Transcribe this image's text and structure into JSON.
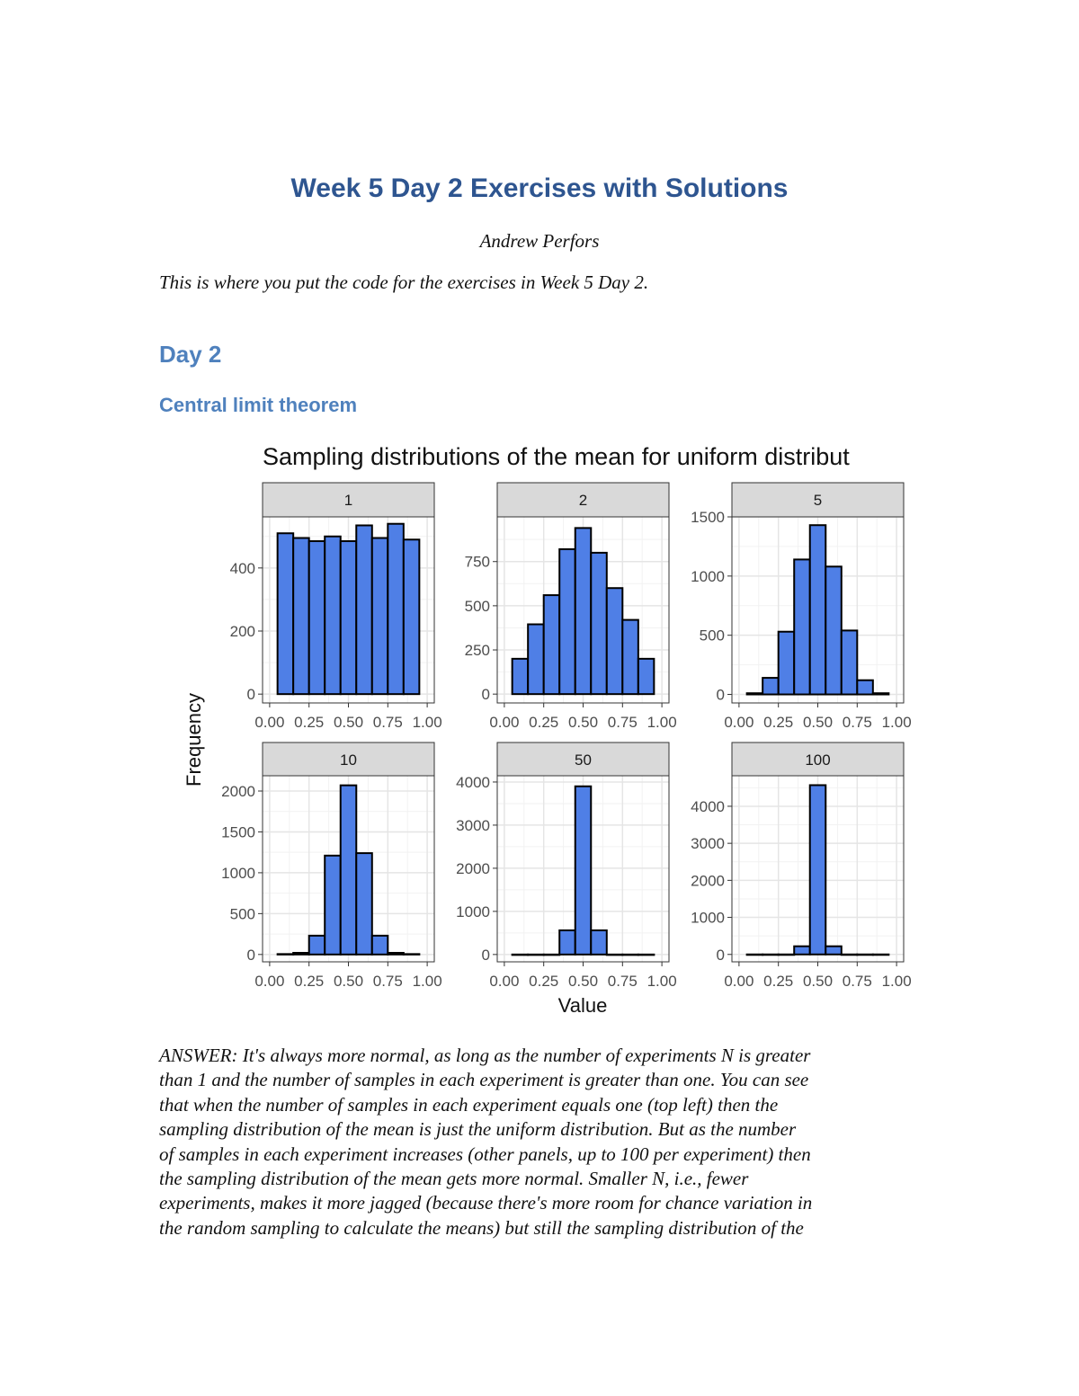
{
  "document": {
    "title": "Week 5 Day 2 Exercises with Solutions",
    "author": "Andrew Perfors",
    "intro": "This is where you put the code for the exercises in Week 5 Day 2.",
    "section_heading": "Day 2",
    "subsection_heading": "Central limit theorem",
    "answer_lines": [
      "ANSWER: It's always more normal, as long as the number of experiments N is greater",
      "than 1 and the number of samples in each experiment is greater than one. You can see",
      "that when the number of samples in each experiment equals one (top left) then the",
      "sampling distribution of the mean is just the uniform distribution. But as the number",
      "of samples in each experiment increases (other panels, up to 100 per experiment) then",
      "the sampling distribution of the mean gets more normal. Smaller N, i.e., fewer",
      "experiments, makes it more jagged (because there's more room for chance variation in",
      "the random sampling to calculate the means) but still the sampling distribution of the"
    ]
  },
  "colors": {
    "heading": "#2e5590",
    "subheading": "#4f81bd",
    "bar_fill": "#4f7fe6",
    "bar_stroke": "#000000",
    "strip_fill": "#d9d9d9"
  },
  "chart_data": {
    "type": "bar",
    "title": "Sampling distributions of the mean for uniform distribut",
    "xlabel": "Value",
    "ylabel": "Frequency",
    "x_ticks": [
      "0.00",
      "0.25",
      "0.50",
      "0.75",
      "1.00"
    ],
    "xlim": [
      0,
      1
    ],
    "bin_centers": [
      0.1,
      0.2,
      0.3,
      0.4,
      0.5,
      0.6,
      0.7,
      0.8,
      0.9
    ],
    "bin_width": 0.1,
    "grid": true,
    "facets": [
      {
        "label": "1",
        "y_ticks": [
          0,
          200,
          400
        ],
        "ylim": [
          -28,
          562
        ],
        "values": [
          510,
          495,
          485,
          500,
          485,
          535,
          495,
          540,
          490
        ]
      },
      {
        "label": "2",
        "y_ticks": [
          0,
          250,
          500,
          750
        ],
        "ylim": [
          -50,
          1003
        ],
        "values": [
          200,
          395,
          560,
          820,
          940,
          800,
          600,
          420,
          200
        ]
      },
      {
        "label": "5",
        "y_ticks": [
          0,
          500,
          1000,
          1500
        ],
        "ylim": [
          -72,
          1500
        ],
        "values": [
          10,
          140,
          530,
          1140,
          1430,
          1080,
          540,
          120,
          10
        ]
      },
      {
        "label": "10",
        "y_ticks": [
          0,
          500,
          1000,
          1500,
          2000
        ],
        "ylim": [
          -90,
          2187
        ],
        "values": [
          5,
          20,
          230,
          1210,
          2070,
          1240,
          230,
          20,
          5
        ]
      },
      {
        "label": "50",
        "y_ticks": [
          0,
          1000,
          2000,
          3000,
          4000
        ],
        "ylim": [
          -170,
          4145
        ],
        "values": [
          0,
          0,
          0,
          560,
          3900,
          560,
          0,
          0,
          0
        ]
      },
      {
        "label": "100",
        "y_ticks": [
          0,
          1000,
          2000,
          3000,
          4000
        ],
        "ylim": [
          -200,
          4824
        ],
        "values": [
          0,
          0,
          0,
          220,
          4570,
          220,
          0,
          0,
          0
        ]
      }
    ]
  }
}
